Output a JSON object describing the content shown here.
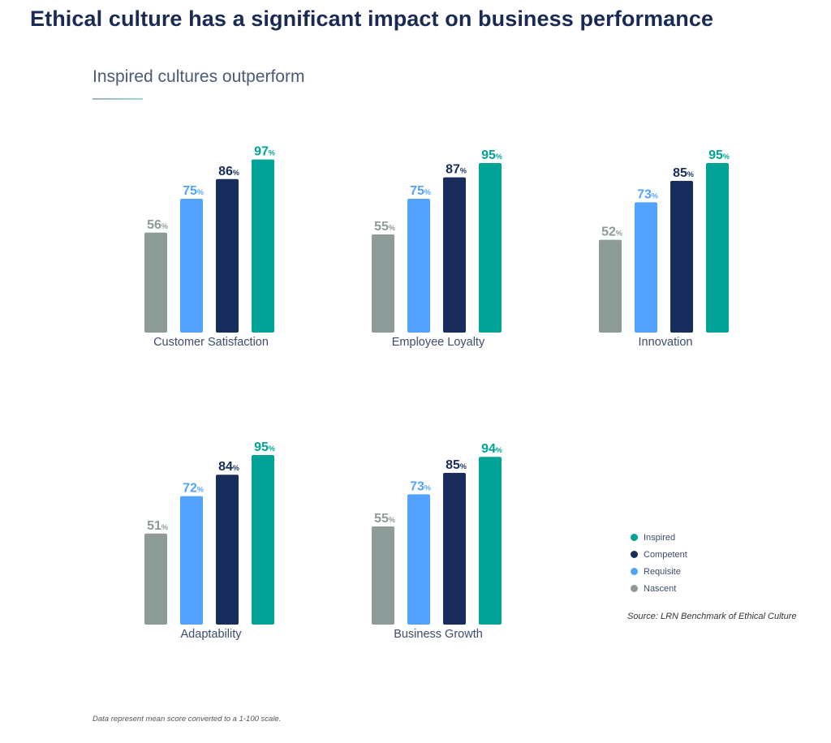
{
  "page": {
    "title": "Ethical culture has a significant impact on business performance",
    "subtitle": "Inspired cultures outperform",
    "source": "Source: LRN Benchmark of Ethical Culture",
    "note": "Data represent mean score converted to a 1-100 scale."
  },
  "chart_data": {
    "type": "bar",
    "title": "Inspired cultures outperform",
    "xlabel": "",
    "ylabel": "",
    "ylim": [
      0,
      100
    ],
    "grid": false,
    "legend_position": "right",
    "value_suffix": "%",
    "series_names": [
      "Nascent",
      "Requisite",
      "Competent",
      "Inspired"
    ],
    "series_colors": [
      "#8c9a98",
      "#52a3ff",
      "#182d5c",
      "#00a396"
    ],
    "legend": [
      {
        "name": "Inspired",
        "color": "#00a396"
      },
      {
        "name": "Competent",
        "color": "#182d5c"
      },
      {
        "name": "Requisite",
        "color": "#52a3ff"
      },
      {
        "name": "Nascent",
        "color": "#8c9a98"
      }
    ],
    "categories": [
      "Customer Satisfaction",
      "Employee Loyalty",
      "Innovation",
      "Adaptability",
      "Business Growth"
    ],
    "series": [
      {
        "name": "Nascent",
        "values": [
          56,
          55,
          52,
          51,
          55
        ]
      },
      {
        "name": "Requisite",
        "values": [
          75,
          75,
          73,
          72,
          73
        ]
      },
      {
        "name": "Competent",
        "values": [
          86,
          87,
          85,
          84,
          85
        ]
      },
      {
        "name": "Inspired",
        "values": [
          97,
          95,
          95,
          95,
          94
        ]
      }
    ]
  }
}
